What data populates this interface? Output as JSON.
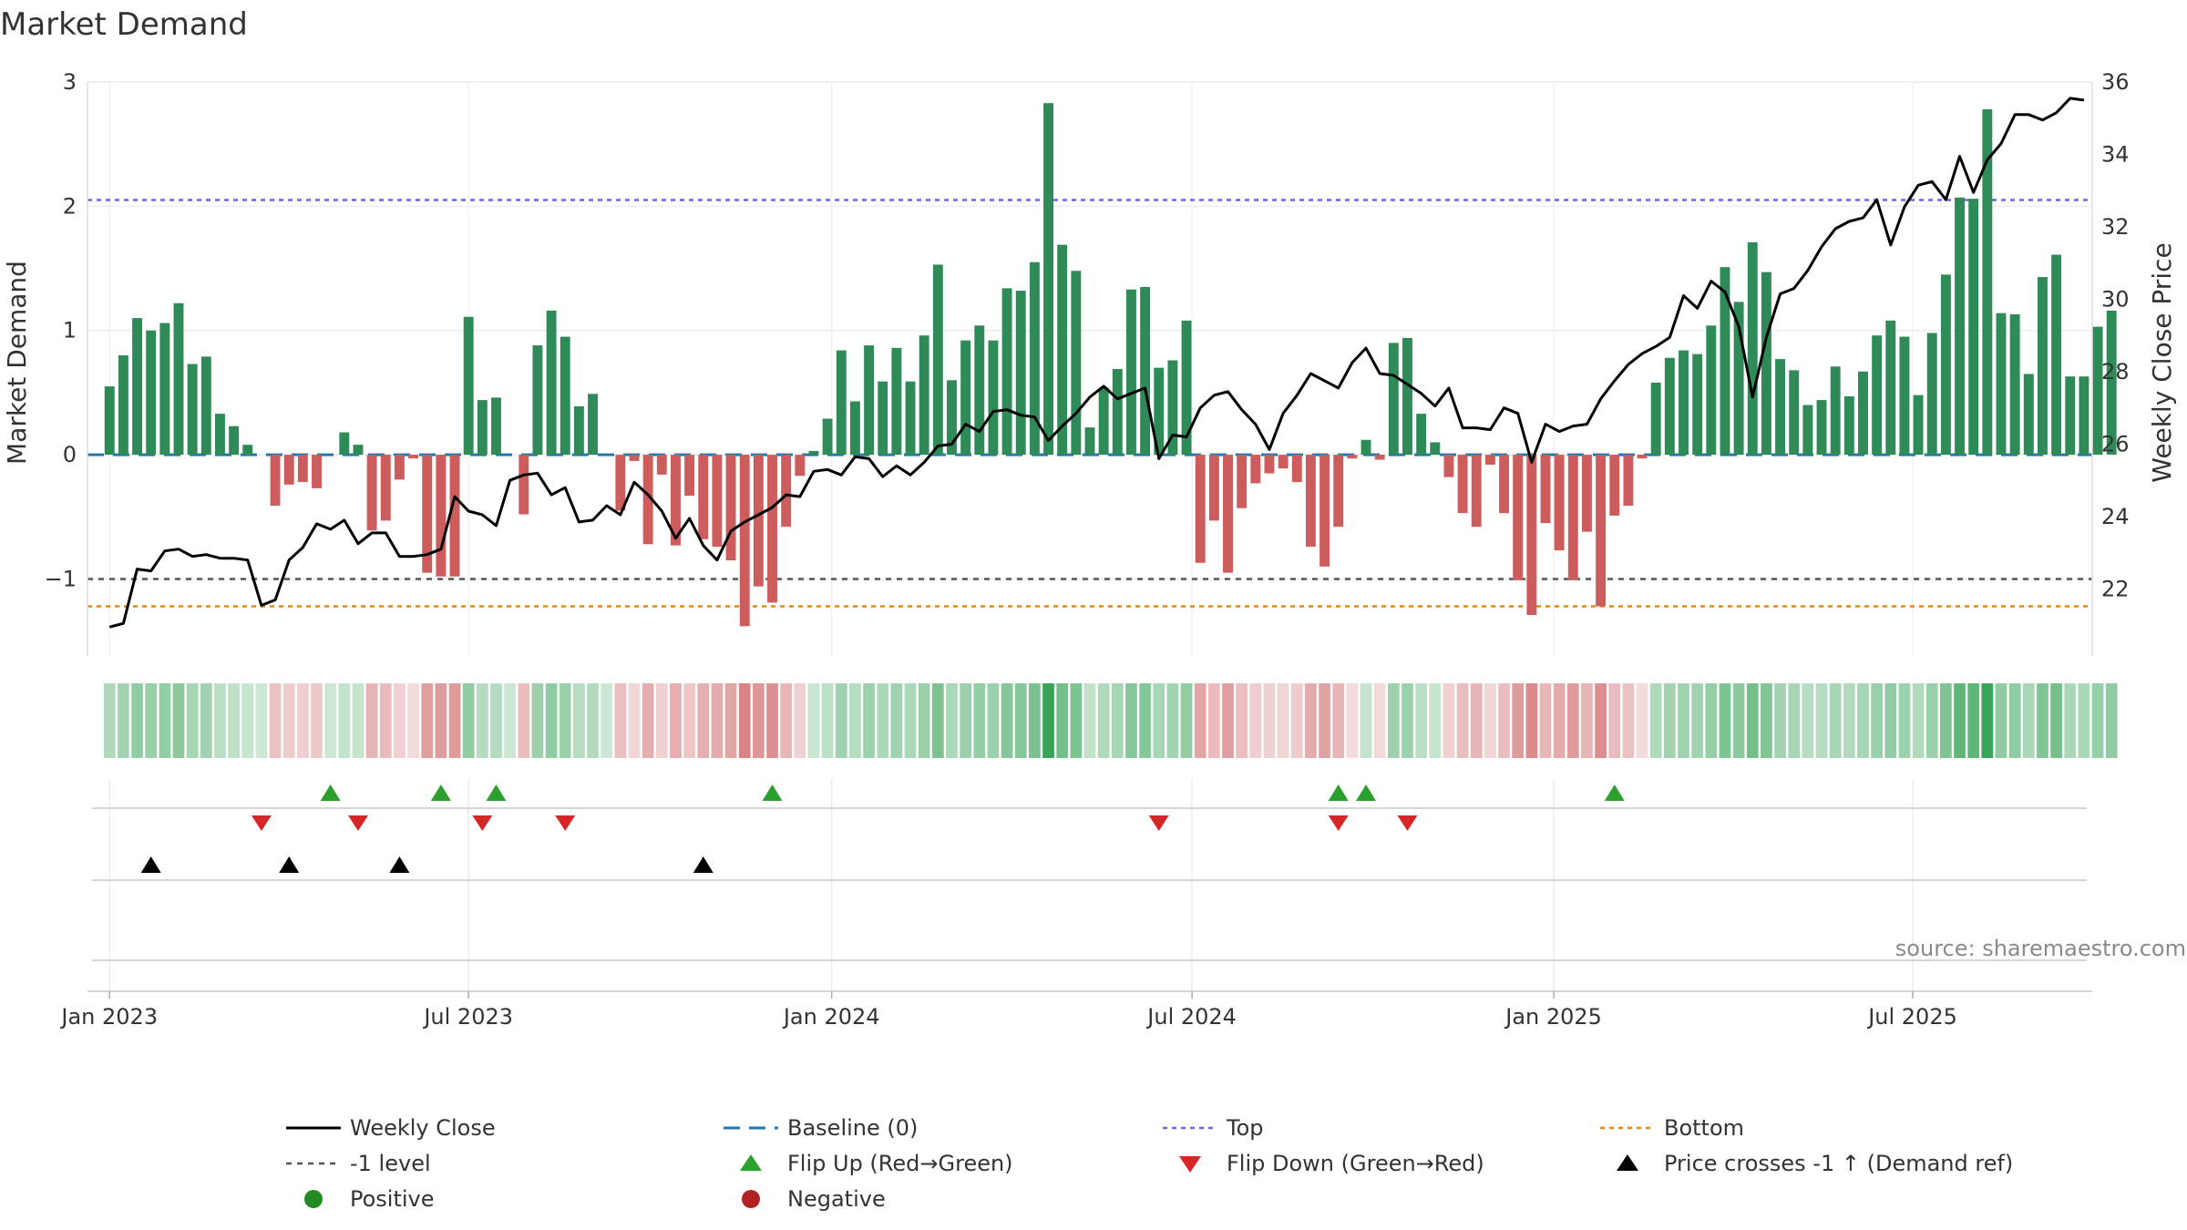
{
  "title": "Market Demand",
  "source": "source: sharemaestro.com",
  "chart_data": {
    "type": "bar",
    "title": "Market Demand",
    "ylabel": "Market Demand",
    "y2label": "Weekly Close Price",
    "ylim": [
      -1.62,
      3.0
    ],
    "y2lim": [
      20.15,
      36.0
    ],
    "yticks": [
      {
        "v": -1,
        "label": "−1"
      },
      {
        "v": 0,
        "label": "0"
      },
      {
        "v": 1,
        "label": "1"
      },
      {
        "v": 2,
        "label": "2"
      },
      {
        "v": 3,
        "label": "3"
      }
    ],
    "y2ticks": [
      {
        "v": 22,
        "label": "22"
      },
      {
        "v": 24,
        "label": "24"
      },
      {
        "v": 26,
        "label": "26"
      },
      {
        "v": 28,
        "label": "28"
      },
      {
        "v": 30,
        "label": "30"
      },
      {
        "v": 32,
        "label": "32"
      },
      {
        "v": 34,
        "label": "34"
      },
      {
        "v": 36,
        "label": "36"
      }
    ],
    "x_index_range": [
      -1.6,
      143.6
    ],
    "x_ticks": [
      {
        "idx": 0,
        "label": "Jan 2023"
      },
      {
        "idx": 26,
        "label": "Jul 2023"
      },
      {
        "idx": 52.3,
        "label": "Jan 2024"
      },
      {
        "idx": 78.4,
        "label": "Jul 2024"
      },
      {
        "idx": 104.6,
        "label": "Jan 2025"
      },
      {
        "idx": 130.6,
        "label": "Jul 2025"
      }
    ],
    "reference_lines": {
      "baseline": 0,
      "top": 2.05,
      "bottom": -1.22,
      "minus_one": -1
    },
    "demand": [
      0.55,
      0.8,
      1.1,
      1.0,
      1.06,
      1.22,
      0.73,
      0.79,
      0.33,
      0.23,
      0.08,
      0.0,
      -0.41,
      -0.24,
      -0.22,
      -0.27,
      0.0,
      0.18,
      0.08,
      -0.61,
      -0.53,
      -0.2,
      -0.03,
      -0.95,
      -0.98,
      -0.98,
      1.11,
      0.44,
      0.46,
      0.0,
      -0.48,
      0.88,
      1.16,
      0.95,
      0.39,
      0.49,
      0.0,
      -0.45,
      -0.05,
      -0.72,
      -0.16,
      -0.73,
      -0.33,
      -0.68,
      -0.74,
      -0.85,
      -1.38,
      -1.06,
      -1.19,
      -0.58,
      -0.17,
      0.03,
      0.29,
      0.84,
      0.43,
      0.88,
      0.59,
      0.86,
      0.59,
      0.96,
      1.53,
      0.6,
      0.92,
      1.04,
      0.92,
      1.34,
      1.32,
      1.55,
      2.83,
      1.69,
      1.48,
      0.22,
      0.54,
      0.69,
      1.33,
      1.35,
      0.7,
      0.76,
      1.08,
      -0.87,
      -0.53,
      -0.95,
      -0.43,
      -0.23,
      -0.15,
      -0.11,
      -0.22,
      -0.74,
      -0.9,
      -0.58,
      -0.03,
      0.12,
      -0.04,
      0.9,
      0.94,
      0.33,
      0.1,
      -0.18,
      -0.47,
      -0.58,
      -0.08,
      -0.47,
      -1.01,
      -1.29,
      -0.55,
      -0.77,
      -1.01,
      -0.62,
      -1.22,
      -0.49,
      -0.41,
      -0.03,
      0.58,
      0.78,
      0.84,
      0.81,
      1.04,
      1.51,
      1.23,
      1.71,
      1.47,
      0.77,
      0.68,
      0.4,
      0.44,
      0.71,
      0.47,
      0.67,
      0.96,
      1.08,
      0.95,
      0.48,
      0.98,
      1.45,
      2.07,
      2.06,
      2.78,
      1.14,
      1.13,
      0.65,
      1.43,
      1.61,
      0.63,
      0.63,
      1.03,
      1.16
    ],
    "close": [
      20.95,
      21.05,
      22.55,
      22.5,
      23.05,
      23.1,
      22.9,
      22.95,
      22.85,
      22.85,
      22.8,
      21.55,
      21.7,
      22.8,
      23.15,
      23.8,
      23.65,
      23.9,
      23.25,
      23.55,
      23.55,
      22.9,
      22.9,
      22.95,
      23.1,
      24.55,
      24.15,
      24.05,
      23.75,
      25.0,
      25.15,
      25.2,
      24.6,
      24.8,
      23.85,
      23.9,
      24.3,
      24.05,
      24.95,
      24.6,
      24.15,
      23.4,
      23.95,
      23.2,
      22.8,
      23.6,
      23.85,
      24.05,
      24.25,
      24.6,
      24.55,
      25.25,
      25.3,
      25.15,
      25.65,
      25.6,
      25.1,
      25.4,
      25.15,
      25.5,
      25.95,
      26.0,
      26.55,
      26.35,
      26.9,
      26.95,
      26.8,
      26.75,
      26.1,
      26.5,
      26.85,
      27.3,
      27.6,
      27.25,
      27.4,
      27.55,
      25.6,
      26.25,
      26.2,
      27.0,
      27.35,
      27.45,
      26.95,
      26.55,
      25.85,
      26.85,
      27.35,
      27.95,
      27.75,
      27.55,
      28.25,
      28.65,
      27.95,
      27.9,
      27.65,
      27.4,
      27.05,
      27.55,
      26.45,
      26.45,
      26.4,
      27.0,
      26.85,
      25.5,
      26.55,
      26.35,
      26.5,
      26.55,
      27.25,
      27.75,
      28.2,
      28.5,
      28.7,
      28.95,
      30.1,
      29.75,
      30.5,
      30.2,
      29.25,
      27.3,
      28.95,
      30.15,
      30.3,
      30.8,
      31.45,
      31.95,
      32.15,
      32.25,
      32.75,
      31.5,
      32.55,
      33.15,
      33.25,
      32.75,
      33.95,
      32.95,
      33.85,
      34.3,
      35.1,
      35.1,
      34.95,
      35.15,
      35.55,
      35.5
    ],
    "flip_up_idx": [
      16,
      24,
      28,
      48,
      89,
      91,
      109
    ],
    "flip_down_idx": [
      11,
      18,
      27,
      33,
      76,
      89,
      94
    ],
    "price_cross_idx": [
      3,
      13,
      21,
      43
    ],
    "legend": [
      {
        "key": "close",
        "label": "Weekly Close"
      },
      {
        "key": "baseline",
        "label": "Baseline (0)"
      },
      {
        "key": "top",
        "label": "Top"
      },
      {
        "key": "bottom",
        "label": "Bottom"
      },
      {
        "key": "minus1",
        "label": "-1 level"
      },
      {
        "key": "flipup",
        "label": "Flip Up (Red→Green)"
      },
      {
        "key": "flipdown",
        "label": "Flip Down (Green→Red)"
      },
      {
        "key": "cross",
        "label": "Price crosses -1 ↑ (Demand ref)"
      },
      {
        "key": "pos",
        "label": "Positive"
      },
      {
        "key": "neg",
        "label": "Negative"
      }
    ]
  },
  "colors": {
    "positive": "#2e8b57",
    "negative": "#cd5c5c",
    "close": "#000000",
    "baseline": "#1f77b4",
    "top": "#6a6ad8",
    "bottom": "#e08a1e",
    "minus1": "#555555",
    "flip_up": "#2ca02c",
    "flip_down": "#d62728",
    "cross": "#000000",
    "legend_pos": "#228b22",
    "legend_neg": "#b22222"
  }
}
